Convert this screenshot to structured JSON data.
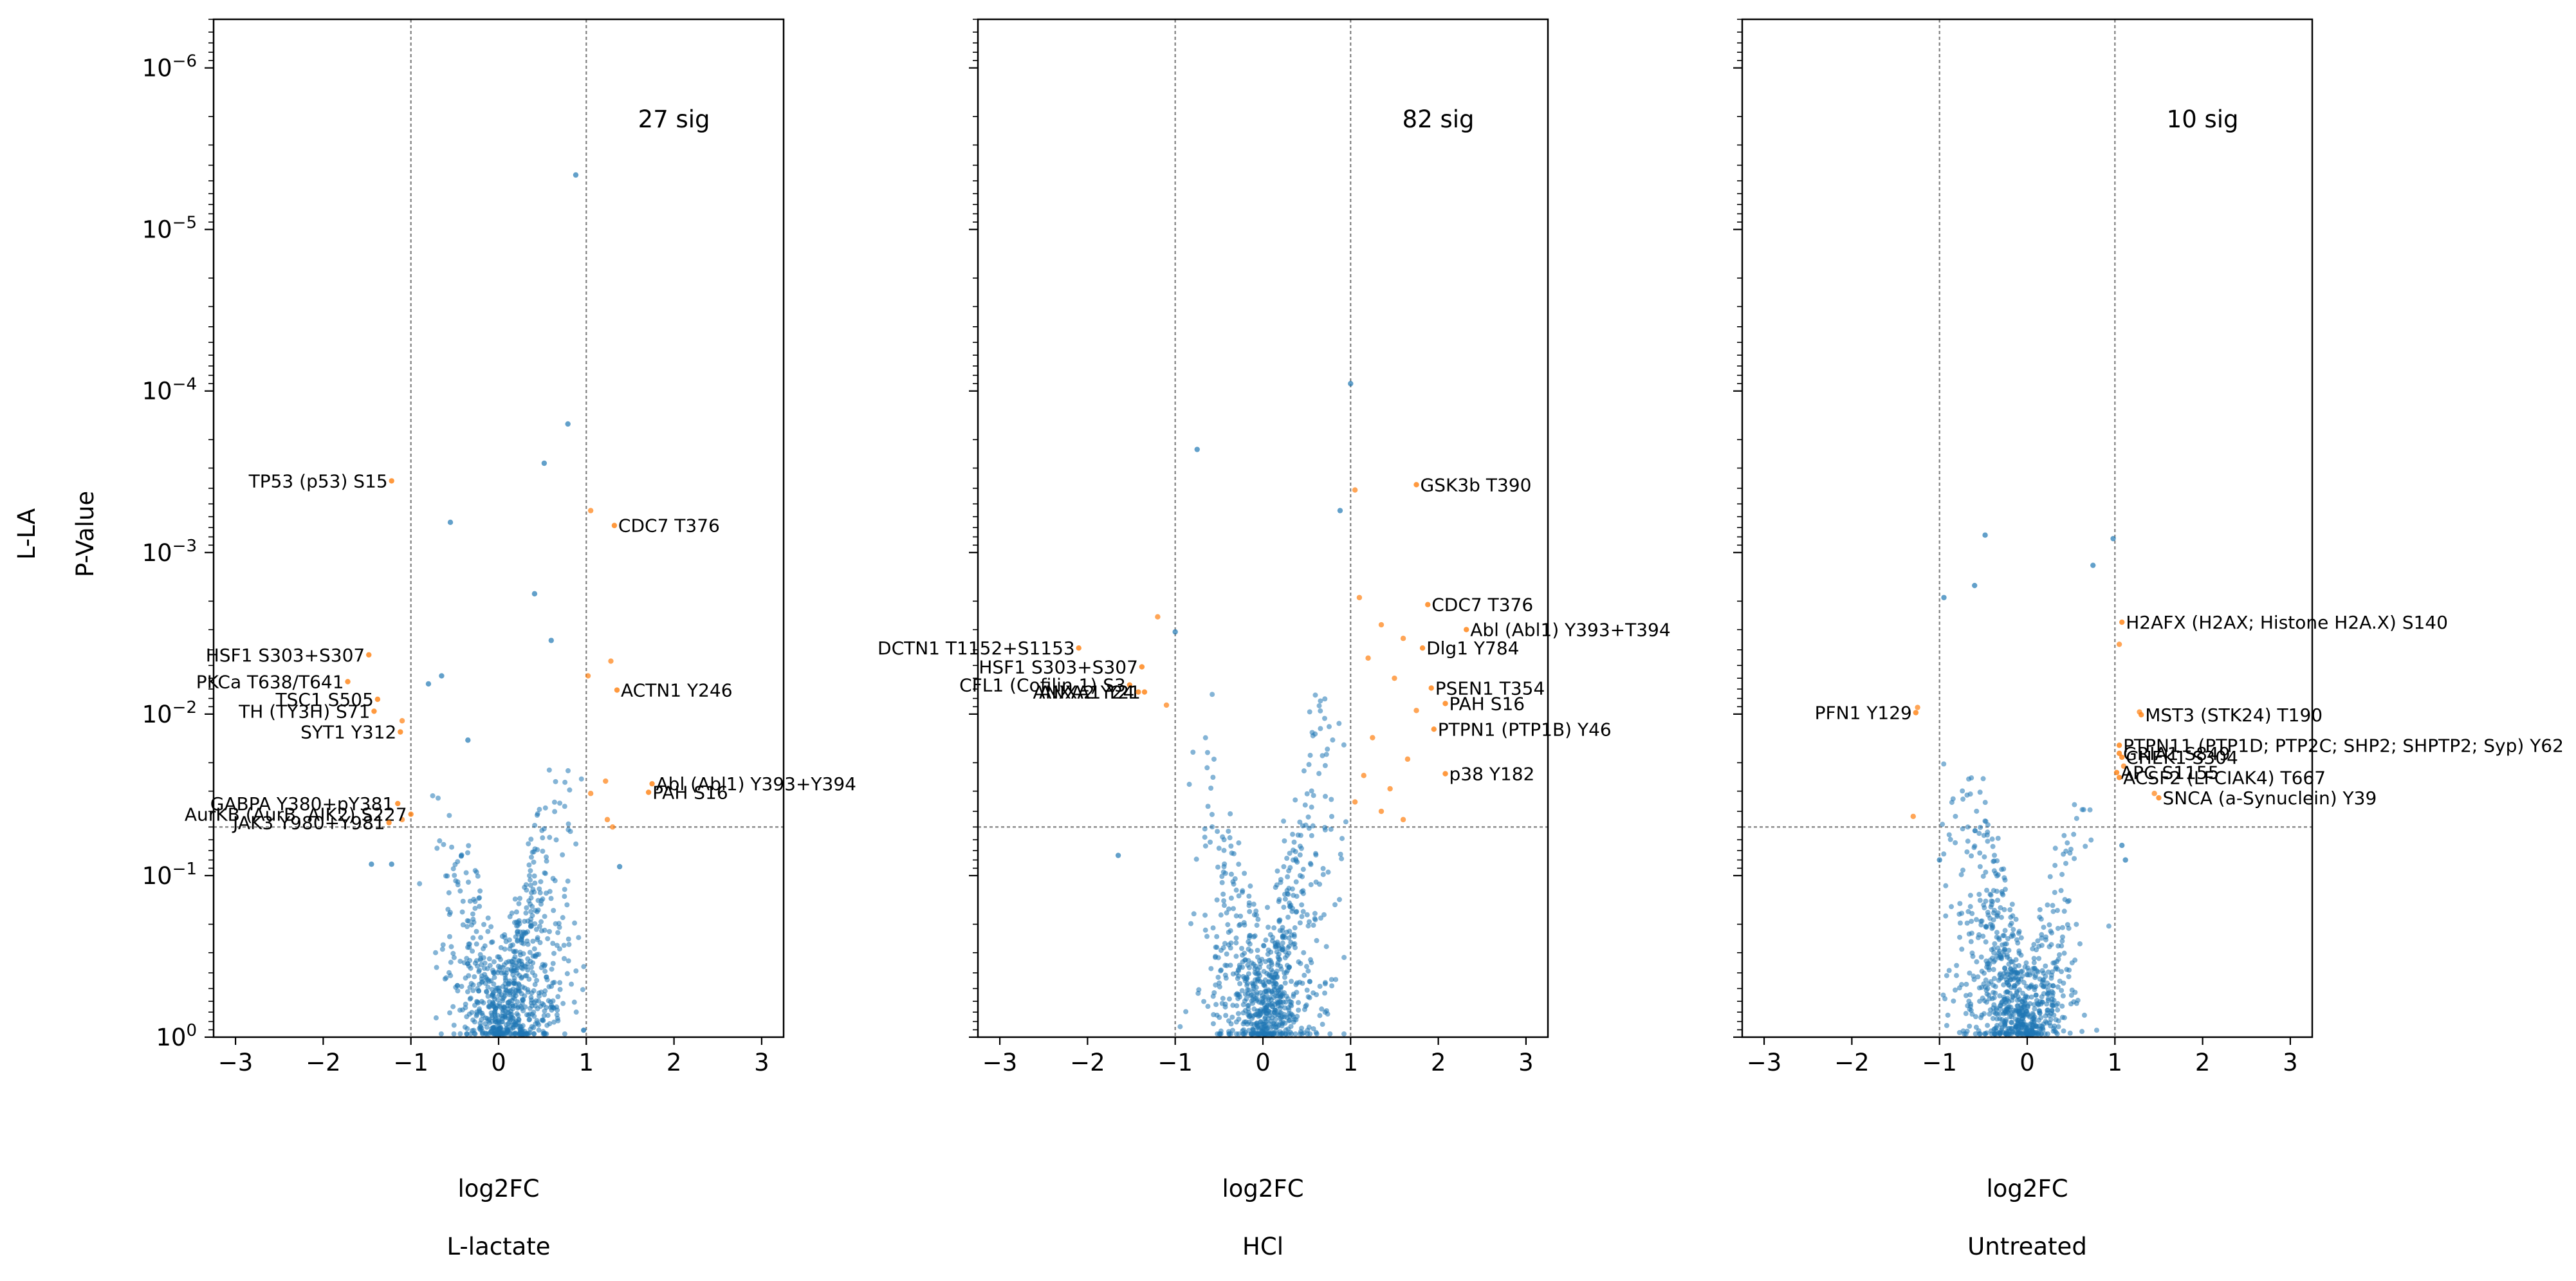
{
  "figure": {
    "row_labels": [
      "L-LA",
      "P-Value"
    ],
    "colors": {
      "nonsig": "#1f77b4",
      "sig": "#ff7f0e",
      "axis": "#000000",
      "guide": "#808080"
    }
  },
  "chart_data": [
    {
      "type": "scatter",
      "title": "L-lactate",
      "xlabel": "log2FC",
      "ylabel": "P-Value",
      "xlim": [
        -3.25,
        3.25
      ],
      "ylim": [
        1,
        5e-07
      ],
      "y_scale": "log-reversed",
      "x_ticks": [
        -3,
        -2,
        -1,
        0,
        1,
        2,
        3
      ],
      "x_tick_labels": [
        "−3",
        "−2",
        "−1",
        "0",
        "1",
        "2",
        "3"
      ],
      "y_ticks": [
        1,
        0.1,
        0.01,
        0.001,
        0.0001,
        1e-05,
        1e-06
      ],
      "y_tick_labels": [
        {
          "base": "10",
          "exp": "0"
        },
        {
          "base": "10",
          "exp": "−1"
        },
        {
          "base": "10",
          "exp": "−2"
        },
        {
          "base": "10",
          "exp": "−3"
        },
        {
          "base": "10",
          "exp": "−4"
        },
        {
          "base": "10",
          "exp": "−5"
        },
        {
          "base": "10",
          "exp": "−6"
        }
      ],
      "fc_threshold": [
        -1,
        1
      ],
      "p_threshold": 0.05,
      "sig_count_label": "27 sig",
      "annotations": [
        {
          "label": "TP53 (p53) S15",
          "x": -1.22,
          "y": 0.00036,
          "side": "left"
        },
        {
          "label": "CDC7 T376",
          "x": 1.32,
          "y": 0.00068,
          "side": "right"
        },
        {
          "label": "HSF1 S303+S307",
          "x": -1.48,
          "y": 0.0043,
          "side": "left"
        },
        {
          "label": "PKCa T638/T641",
          "x": -1.72,
          "y": 0.0063,
          "side": "left"
        },
        {
          "label": "ACTN1 Y246",
          "x": 1.35,
          "y": 0.0071,
          "side": "right"
        },
        {
          "label": "TSC1 S505",
          "x": -1.38,
          "y": 0.0081,
          "side": "left"
        },
        {
          "label": "TH (TY3H) S71",
          "x": -1.42,
          "y": 0.0096,
          "side": "left"
        },
        {
          "label": "SYT1 Y312",
          "x": -1.12,
          "y": 0.0129,
          "side": "left"
        },
        {
          "label": "GABPA Y380+pY381",
          "x": -1.15,
          "y": 0.0358,
          "side": "left"
        },
        {
          "label": "Abl (Abl1) Y393+Y394",
          "x": 1.75,
          "y": 0.027,
          "side": "right"
        },
        {
          "label": "PAH S16",
          "x": 1.71,
          "y": 0.0305,
          "side": "right"
        },
        {
          "label": "AurKB (AurB, AIK2) S227",
          "x": -1.0,
          "y": 0.0417,
          "side": "left"
        },
        {
          "label": "JAK3 Y980+Y981",
          "x": -1.25,
          "y": 0.047,
          "side": "left"
        }
      ],
      "points": [
        {
          "x": 0.88,
          "y": 4.6e-06,
          "sig": false
        },
        {
          "x": 0.79,
          "y": 0.00016,
          "sig": false
        },
        {
          "x": 0.52,
          "y": 0.00028,
          "sig": false
        },
        {
          "x": -0.55,
          "y": 0.00065,
          "sig": false
        },
        {
          "x": 1.05,
          "y": 0.00055,
          "sig": true
        },
        {
          "x": 1.28,
          "y": 0.0047,
          "sig": true
        },
        {
          "x": 1.02,
          "y": 0.0058,
          "sig": true
        },
        {
          "x": 1.22,
          "y": 0.026,
          "sig": true
        },
        {
          "x": 1.05,
          "y": 0.031,
          "sig": true
        },
        {
          "x": 1.24,
          "y": 0.045,
          "sig": true
        },
        {
          "x": 1.3,
          "y": 0.05,
          "sig": true
        },
        {
          "x": -1.1,
          "y": 0.011,
          "sig": true
        },
        {
          "x": -1.1,
          "y": 0.045,
          "sig": true
        },
        {
          "x": -1.45,
          "y": 0.085,
          "sig": false
        },
        {
          "x": -1.22,
          "y": 0.085,
          "sig": false
        },
        {
          "x": 1.38,
          "y": 0.088,
          "sig": false
        },
        {
          "x": -0.8,
          "y": 0.0065,
          "sig": false
        },
        {
          "x": -0.65,
          "y": 0.0058,
          "sig": false
        },
        {
          "x": -0.35,
          "y": 0.0145,
          "sig": false
        },
        {
          "x": 0.41,
          "y": 0.0018,
          "sig": false
        },
        {
          "x": 0.6,
          "y": 0.0035,
          "sig": false
        }
      ]
    },
    {
      "type": "scatter",
      "title": "HCl",
      "xlabel": "log2FC",
      "ylabel": "",
      "xlim": [
        -3.25,
        3.25
      ],
      "ylim": [
        1,
        5e-07
      ],
      "y_scale": "log-reversed",
      "x_ticks": [
        -3,
        -2,
        -1,
        0,
        1,
        2,
        3
      ],
      "x_tick_labels": [
        "−3",
        "−2",
        "−1",
        "0",
        "1",
        "2",
        "3"
      ],
      "fc_threshold": [
        -1,
        1
      ],
      "p_threshold": 0.05,
      "sig_count_label": "82 sig",
      "annotations": [
        {
          "label": "GSK3b T390",
          "x": 1.75,
          "y": 0.00038,
          "side": "right"
        },
        {
          "label": "CDC7 T376",
          "x": 1.88,
          "y": 0.0021,
          "side": "right"
        },
        {
          "label": "Abl (Abl1) Y393+T394",
          "x": 2.32,
          "y": 0.003,
          "side": "right"
        },
        {
          "label": "Dlg1 Y784",
          "x": 1.82,
          "y": 0.0039,
          "side": "right"
        },
        {
          "label": "DCTN1 T1152+S1153",
          "x": -2.1,
          "y": 0.0039,
          "side": "left"
        },
        {
          "label": "HSF1 S303+S307",
          "x": -1.38,
          "y": 0.0051,
          "side": "left"
        },
        {
          "label": "CFL1 (Cofilin 1) S3",
          "x": -1.52,
          "y": 0.0066,
          "side": "left"
        },
        {
          "label": "ANXA1 Y21",
          "x": -1.35,
          "y": 0.0073,
          "side": "left"
        },
        {
          "label": "ANXA2 Y24",
          "x": -1.42,
          "y": 0.0073,
          "side": "left"
        },
        {
          "label": "PSEN1 T354",
          "x": 1.92,
          "y": 0.0069,
          "side": "right"
        },
        {
          "label": "PAH S16",
          "x": 2.08,
          "y": 0.0086,
          "side": "right"
        },
        {
          "label": "PTPN1 (PTP1B) Y46",
          "x": 1.95,
          "y": 0.0124,
          "side": "right"
        },
        {
          "label": "p38 Y182",
          "x": 2.08,
          "y": 0.0234,
          "side": "right"
        }
      ],
      "points": [
        {
          "x": 1.0,
          "y": 9e-05,
          "sig": false
        },
        {
          "x": -0.75,
          "y": 0.00023,
          "sig": false
        },
        {
          "x": 0.88,
          "y": 0.00055,
          "sig": false
        },
        {
          "x": -1.0,
          "y": 0.0031,
          "sig": false
        },
        {
          "x": -1.65,
          "y": 0.075,
          "sig": false
        },
        {
          "x": 1.05,
          "y": 0.00041,
          "sig": true
        },
        {
          "x": 1.1,
          "y": 0.0019,
          "sig": true
        },
        {
          "x": 1.35,
          "y": 0.0028,
          "sig": true
        },
        {
          "x": 1.6,
          "y": 0.0034,
          "sig": true
        },
        {
          "x": 1.2,
          "y": 0.0045,
          "sig": true
        },
        {
          "x": 1.5,
          "y": 0.006,
          "sig": true
        },
        {
          "x": 1.75,
          "y": 0.0095,
          "sig": true
        },
        {
          "x": 1.25,
          "y": 0.014,
          "sig": true
        },
        {
          "x": 1.65,
          "y": 0.019,
          "sig": true
        },
        {
          "x": 1.15,
          "y": 0.024,
          "sig": true
        },
        {
          "x": 1.45,
          "y": 0.029,
          "sig": true
        },
        {
          "x": 1.05,
          "y": 0.035,
          "sig": true
        },
        {
          "x": 1.35,
          "y": 0.04,
          "sig": true
        },
        {
          "x": 1.6,
          "y": 0.045,
          "sig": true
        },
        {
          "x": -1.2,
          "y": 0.0025,
          "sig": true
        },
        {
          "x": -1.1,
          "y": 0.0088,
          "sig": true
        }
      ]
    },
    {
      "type": "scatter",
      "title": "Untreated",
      "xlabel": "log2FC",
      "ylabel": "",
      "xlim": [
        -3.25,
        3.25
      ],
      "ylim": [
        1,
        5e-07
      ],
      "y_scale": "log-reversed",
      "x_ticks": [
        -3,
        -2,
        -1,
        0,
        1,
        2,
        3
      ],
      "x_tick_labels": [
        "−3",
        "−2",
        "−1",
        "0",
        "1",
        "2",
        "3"
      ],
      "fc_threshold": [
        -1,
        1
      ],
      "p_threshold": 0.05,
      "sig_count_label": "10 sig",
      "annotations": [
        {
          "label": "H2AFX (H2AX; Histone H2A.X) S140",
          "x": 1.08,
          "y": 0.0027,
          "side": "right"
        },
        {
          "label": "PFN1 Y129",
          "x": -1.27,
          "y": 0.0098,
          "side": "left"
        },
        {
          "label": "MST3 (STK24) T190",
          "x": 1.3,
          "y": 0.0101,
          "side": "right"
        },
        {
          "label": "PTPN11 (PTP1D; PTP2C; SHP2; SHPTP2; Syp) Y62",
          "x": 1.05,
          "y": 0.0156,
          "side": "right"
        },
        {
          "label": "GRIA1 S849",
          "x": 1.05,
          "y": 0.0175,
          "side": "right"
        },
        {
          "label": "CHEK1 S304",
          "x": 1.08,
          "y": 0.0185,
          "side": "right"
        },
        {
          "label": "APC S1155",
          "x": 1.02,
          "y": 0.023,
          "side": "right"
        },
        {
          "label": "ACSF2 (LFCIAK4) T667",
          "x": 1.05,
          "y": 0.0247,
          "side": "right"
        },
        {
          "label": "SNCA (a-Synuclein) Y39",
          "x": 1.5,
          "y": 0.033,
          "side": "right"
        }
      ],
      "points": [
        {
          "x": -0.48,
          "y": 0.00078,
          "sig": false
        },
        {
          "x": 0.98,
          "y": 0.00082,
          "sig": false
        },
        {
          "x": 0.75,
          "y": 0.0012,
          "sig": false
        },
        {
          "x": -0.6,
          "y": 0.0016,
          "sig": false
        },
        {
          "x": -0.95,
          "y": 0.0019,
          "sig": false
        },
        {
          "x": 1.05,
          "y": 0.0037,
          "sig": true
        },
        {
          "x": -1.25,
          "y": 0.0091,
          "sig": true
        },
        {
          "x": 1.28,
          "y": 0.0097,
          "sig": true
        },
        {
          "x": 1.1,
          "y": 0.021,
          "sig": true
        },
        {
          "x": 1.45,
          "y": 0.031,
          "sig": true
        },
        {
          "x": -1.3,
          "y": 0.043,
          "sig": true
        },
        {
          "x": 1.12,
          "y": 0.08,
          "sig": false
        },
        {
          "x": 1.08,
          "y": 0.065,
          "sig": false
        },
        {
          "x": -1.0,
          "y": 0.08,
          "sig": false
        }
      ]
    }
  ]
}
